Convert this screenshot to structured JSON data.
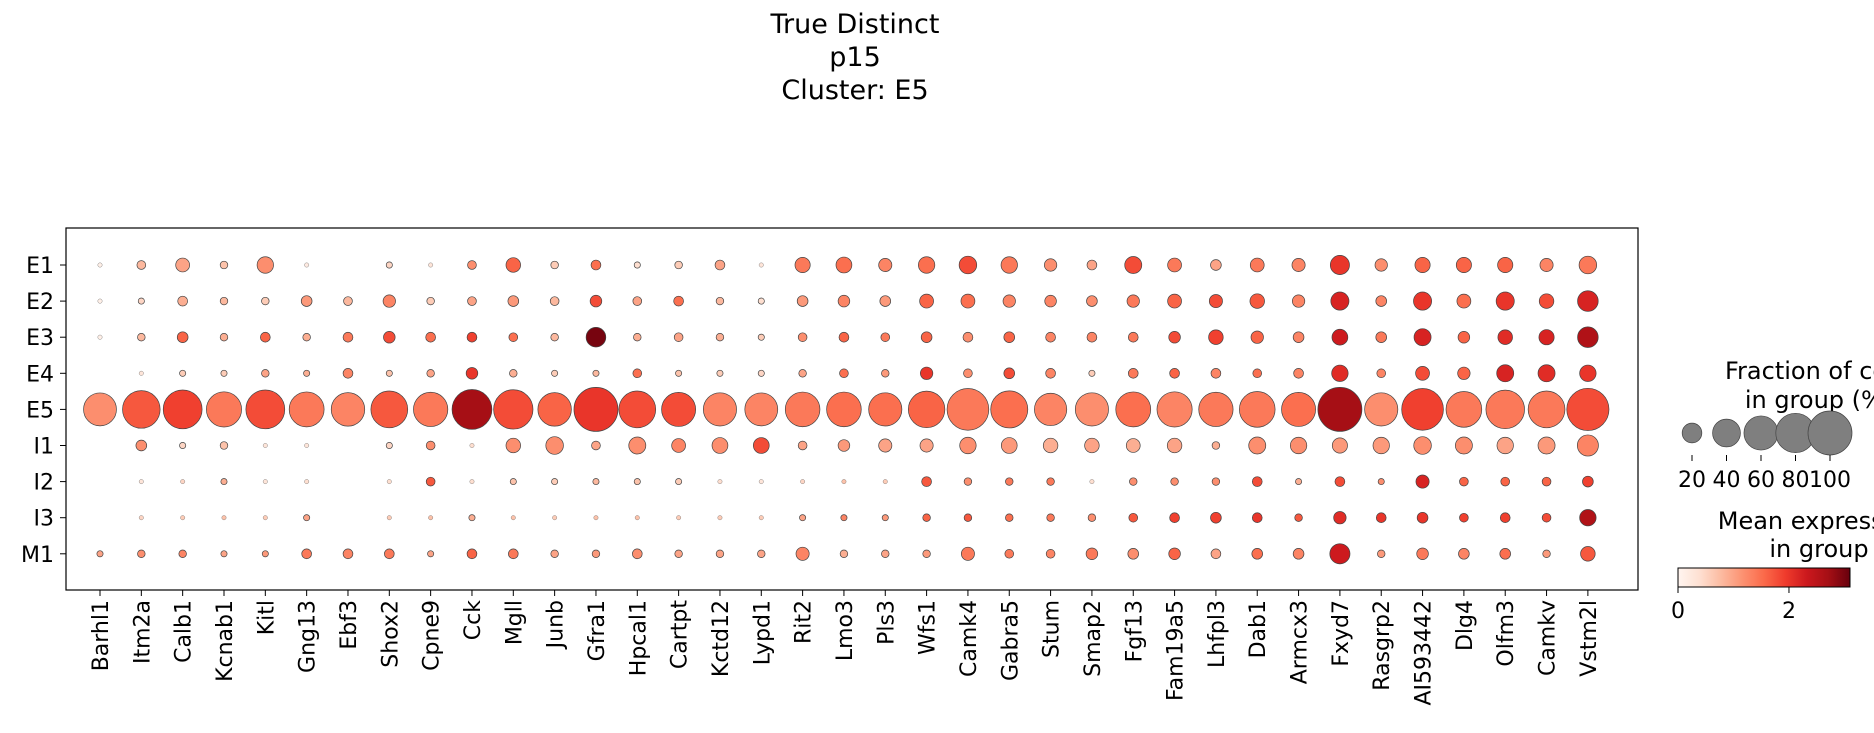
{
  "title_lines": [
    "True Distinct",
    "p15",
    "Cluster: E5"
  ],
  "chart_data": {
    "type": "dotplot",
    "genes": [
      "Barhl1",
      "Itm2a",
      "Calb1",
      "Kcnab1",
      "Kitl",
      "Gng13",
      "Ebf3",
      "Shox2",
      "Cpne9",
      "Cck",
      "Mgll",
      "Junb",
      "Gfra1",
      "Hpcal1",
      "Cartpt",
      "Kctd12",
      "Lypd1",
      "Rit2",
      "Lmo3",
      "Pls3",
      "Wfs1",
      "Camk4",
      "Gabra5",
      "Stum",
      "Smap2",
      "Fgf13",
      "Fam19a5",
      "Lhfpl3",
      "Dab1",
      "Armcx3",
      "Fxyd7",
      "Rasgrp2",
      "AI593442",
      "Dlg4",
      "Olfm3",
      "Camkv",
      "Vstm2l"
    ],
    "groups": [
      "E1",
      "E2",
      "E3",
      "E4",
      "E5",
      "I1",
      "I2",
      "I3",
      "M1"
    ],
    "fraction_pct": {
      "E1": [
        1,
        4,
        10,
        3,
        14,
        1,
        0,
        2,
        1,
        4,
        11,
        3,
        5,
        2,
        3,
        5,
        1,
        12,
        13,
        9,
        14,
        16,
        14,
        8,
        5,
        15,
        10,
        6,
        10,
        9,
        19,
        8,
        12,
        12,
        12,
        9,
        16
      ],
      "E2": [
        1,
        2,
        5,
        3,
        3,
        6,
        4,
        8,
        3,
        4,
        6,
        4,
        7,
        4,
        5,
        3,
        2,
        6,
        7,
        6,
        10,
        10,
        8,
        7,
        6,
        8,
        10,
        9,
        11,
        8,
        17,
        6,
        17,
        10,
        17,
        11,
        22
      ],
      "E3": [
        1,
        3,
        6,
        3,
        5,
        3,
        5,
        7,
        5,
        5,
        4,
        3,
        20,
        3,
        4,
        3,
        2,
        4,
        5,
        4,
        6,
        5,
        6,
        5,
        5,
        5,
        7,
        11,
        8,
        6,
        13,
        6,
        15,
        7,
        11,
        12,
        22
      ],
      "E4": [
        0,
        1,
        2,
        2,
        3,
        2,
        5,
        2,
        3,
        7,
        3,
        2,
        2,
        4,
        2,
        2,
        2,
        3,
        4,
        3,
        8,
        4,
        6,
        5,
        2,
        5,
        5,
        5,
        4,
        5,
        14,
        4,
        10,
        8,
        15,
        15,
        14
      ],
      "E5": [
        56,
        73,
        78,
        64,
        78,
        63,
        58,
        70,
        61,
        82,
        80,
        58,
        100,
        70,
        60,
        57,
        56,
        62,
        62,
        57,
        69,
        90,
        71,
        54,
        57,
        63,
        64,
        61,
        66,
        60,
        100,
        57,
        90,
        66,
        77,
        70,
        92
      ],
      "I1": [
        0,
        6,
        2,
        3,
        1,
        1,
        0,
        2,
        4,
        1,
        11,
        16,
        4,
        15,
        10,
        13,
        13,
        4,
        7,
        9,
        9,
        14,
        13,
        11,
        11,
        10,
        11,
        3,
        15,
        14,
        12,
        14,
        16,
        15,
        14,
        15,
        23
      ],
      "I2": [
        0,
        1,
        1,
        2,
        1,
        1,
        0,
        1,
        4,
        1,
        2,
        2,
        2,
        2,
        2,
        1,
        1,
        1,
        1,
        1,
        5,
        3,
        3,
        3,
        1,
        3,
        3,
        3,
        5,
        2,
        5,
        2,
        9,
        4,
        4,
        4,
        6
      ],
      "I3": [
        0,
        1,
        1,
        1,
        1,
        2,
        0,
        1,
        1,
        2,
        1,
        1,
        1,
        1,
        1,
        1,
        1,
        2,
        2,
        2,
        3,
        3,
        3,
        3,
        3,
        4,
        5,
        6,
        5,
        3,
        8,
        5,
        6,
        4,
        5,
        4,
        14
      ],
      "M1": [
        2,
        3,
        3,
        2,
        2,
        5,
        5,
        5,
        2,
        5,
        5,
        3,
        3,
        5,
        3,
        3,
        3,
        9,
        3,
        3,
        3,
        9,
        4,
        4,
        7,
        6,
        7,
        5,
        6,
        6,
        21,
        3,
        7,
        6,
        6,
        3,
        11
      ]
    },
    "mean_expr": {
      "E1": [
        0.1,
        0.8,
        1.0,
        0.7,
        1.2,
        0.2,
        0.1,
        0.5,
        0.3,
        1.2,
        1.6,
        0.6,
        1.5,
        0.4,
        0.6,
        1.0,
        0.3,
        1.4,
        1.5,
        1.3,
        1.5,
        1.8,
        1.4,
        1.2,
        1.0,
        1.8,
        1.4,
        1.0,
        1.4,
        1.3,
        2.0,
        1.2,
        1.6,
        1.6,
        1.6,
        1.3,
        1.4
      ],
      "E2": [
        0.1,
        0.5,
        0.9,
        0.8,
        0.6,
        1.1,
        0.8,
        1.3,
        0.6,
        1.0,
        1.1,
        0.8,
        1.8,
        1.0,
        1.5,
        0.8,
        0.4,
        1.1,
        1.3,
        1.1,
        1.6,
        1.5,
        1.3,
        1.3,
        1.2,
        1.4,
        1.6,
        1.8,
        1.7,
        1.3,
        2.2,
        1.3,
        2.0,
        1.5,
        2.0,
        1.8,
        2.2
      ],
      "E3": [
        0.1,
        0.8,
        1.6,
        0.9,
        1.6,
        0.9,
        1.4,
        1.8,
        1.5,
        1.9,
        1.5,
        0.8,
        3.0,
        0.9,
        1.0,
        0.9,
        0.6,
        1.2,
        1.6,
        1.4,
        1.6,
        1.2,
        1.6,
        1.3,
        1.3,
        1.4,
        1.8,
        1.9,
        1.6,
        1.3,
        2.3,
        1.4,
        2.2,
        1.6,
        2.1,
        2.2,
        2.6
      ],
      "E4": [
        0.1,
        0.3,
        0.6,
        0.6,
        1.0,
        0.9,
        1.3,
        0.7,
        1.0,
        2.0,
        0.9,
        0.6,
        0.8,
        1.5,
        0.7,
        0.6,
        0.5,
        1.0,
        1.5,
        1.1,
        2.0,
        1.2,
        1.8,
        1.3,
        0.6,
        1.4,
        1.6,
        1.3,
        1.5,
        1.3,
        2.1,
        1.3,
        1.8,
        1.6,
        2.2,
        2.1,
        2.0
      ],
      "E5": [
        1.2,
        1.7,
        1.9,
        1.4,
        1.8,
        1.4,
        1.3,
        1.7,
        1.4,
        2.7,
        1.8,
        1.6,
        2.0,
        1.8,
        1.8,
        1.3,
        1.3,
        1.4,
        1.5,
        1.5,
        1.6,
        1.4,
        1.5,
        1.3,
        1.2,
        1.5,
        1.3,
        1.4,
        1.4,
        1.5,
        2.7,
        1.2,
        1.9,
        1.4,
        1.4,
        1.4,
        1.8
      ],
      "I1": [
        0.1,
        1.2,
        0.5,
        0.7,
        0.3,
        0.3,
        0.1,
        0.5,
        1.2,
        0.4,
        1.2,
        1.2,
        1.0,
        1.2,
        1.3,
        1.2,
        1.8,
        1.0,
        1.1,
        1.0,
        1.0,
        1.2,
        1.1,
        0.9,
        1.0,
        0.9,
        1.0,
        0.9,
        1.2,
        1.2,
        1.1,
        1.1,
        1.2,
        1.2,
        1.0,
        1.1,
        1.3
      ],
      "I2": [
        0.1,
        0.3,
        0.5,
        0.9,
        0.3,
        0.4,
        0.1,
        0.4,
        1.7,
        0.4,
        0.7,
        0.6,
        0.8,
        0.7,
        0.6,
        0.4,
        0.3,
        0.5,
        0.7,
        0.6,
        1.7,
        1.2,
        1.4,
        1.4,
        0.4,
        1.2,
        1.2,
        1.2,
        1.8,
        0.9,
        1.8,
        1.2,
        2.2,
        1.6,
        1.6,
        1.6,
        1.9
      ],
      "I3": [
        0.1,
        0.5,
        0.6,
        0.7,
        0.6,
        1.0,
        0.1,
        0.6,
        0.7,
        0.9,
        0.7,
        0.6,
        0.7,
        0.7,
        0.6,
        0.6,
        0.6,
        1.0,
        1.3,
        1.1,
        1.6,
        1.7,
        1.5,
        1.4,
        1.2,
        1.7,
        1.9,
        1.9,
        2.0,
        1.7,
        2.1,
        2.0,
        2.0,
        1.9,
        1.9,
        1.8,
        2.6
      ],
      "M1": [
        1.0,
        1.2,
        1.3,
        1.0,
        1.1,
        1.4,
        1.3,
        1.4,
        1.0,
        1.6,
        1.4,
        1.0,
        1.1,
        1.2,
        1.0,
        1.0,
        1.0,
        1.3,
        0.9,
        1.0,
        1.1,
        1.4,
        1.4,
        1.3,
        1.4,
        1.2,
        1.6,
        1.0,
        1.5,
        1.3,
        2.3,
        1.1,
        1.4,
        1.3,
        1.5,
        1.1,
        1.7
      ]
    },
    "color_scale": {
      "min": 0,
      "max": 3.1,
      "colormap": "Reds",
      "ticks": [
        0,
        2
      ]
    },
    "size_legend": {
      "title_lines": [
        "Fraction of cells",
        "in group (%)"
      ],
      "values": [
        20,
        40,
        60,
        80,
        100
      ]
    },
    "color_legend": {
      "title_lines": [
        "Mean expression",
        "in group"
      ]
    },
    "grid": false
  }
}
